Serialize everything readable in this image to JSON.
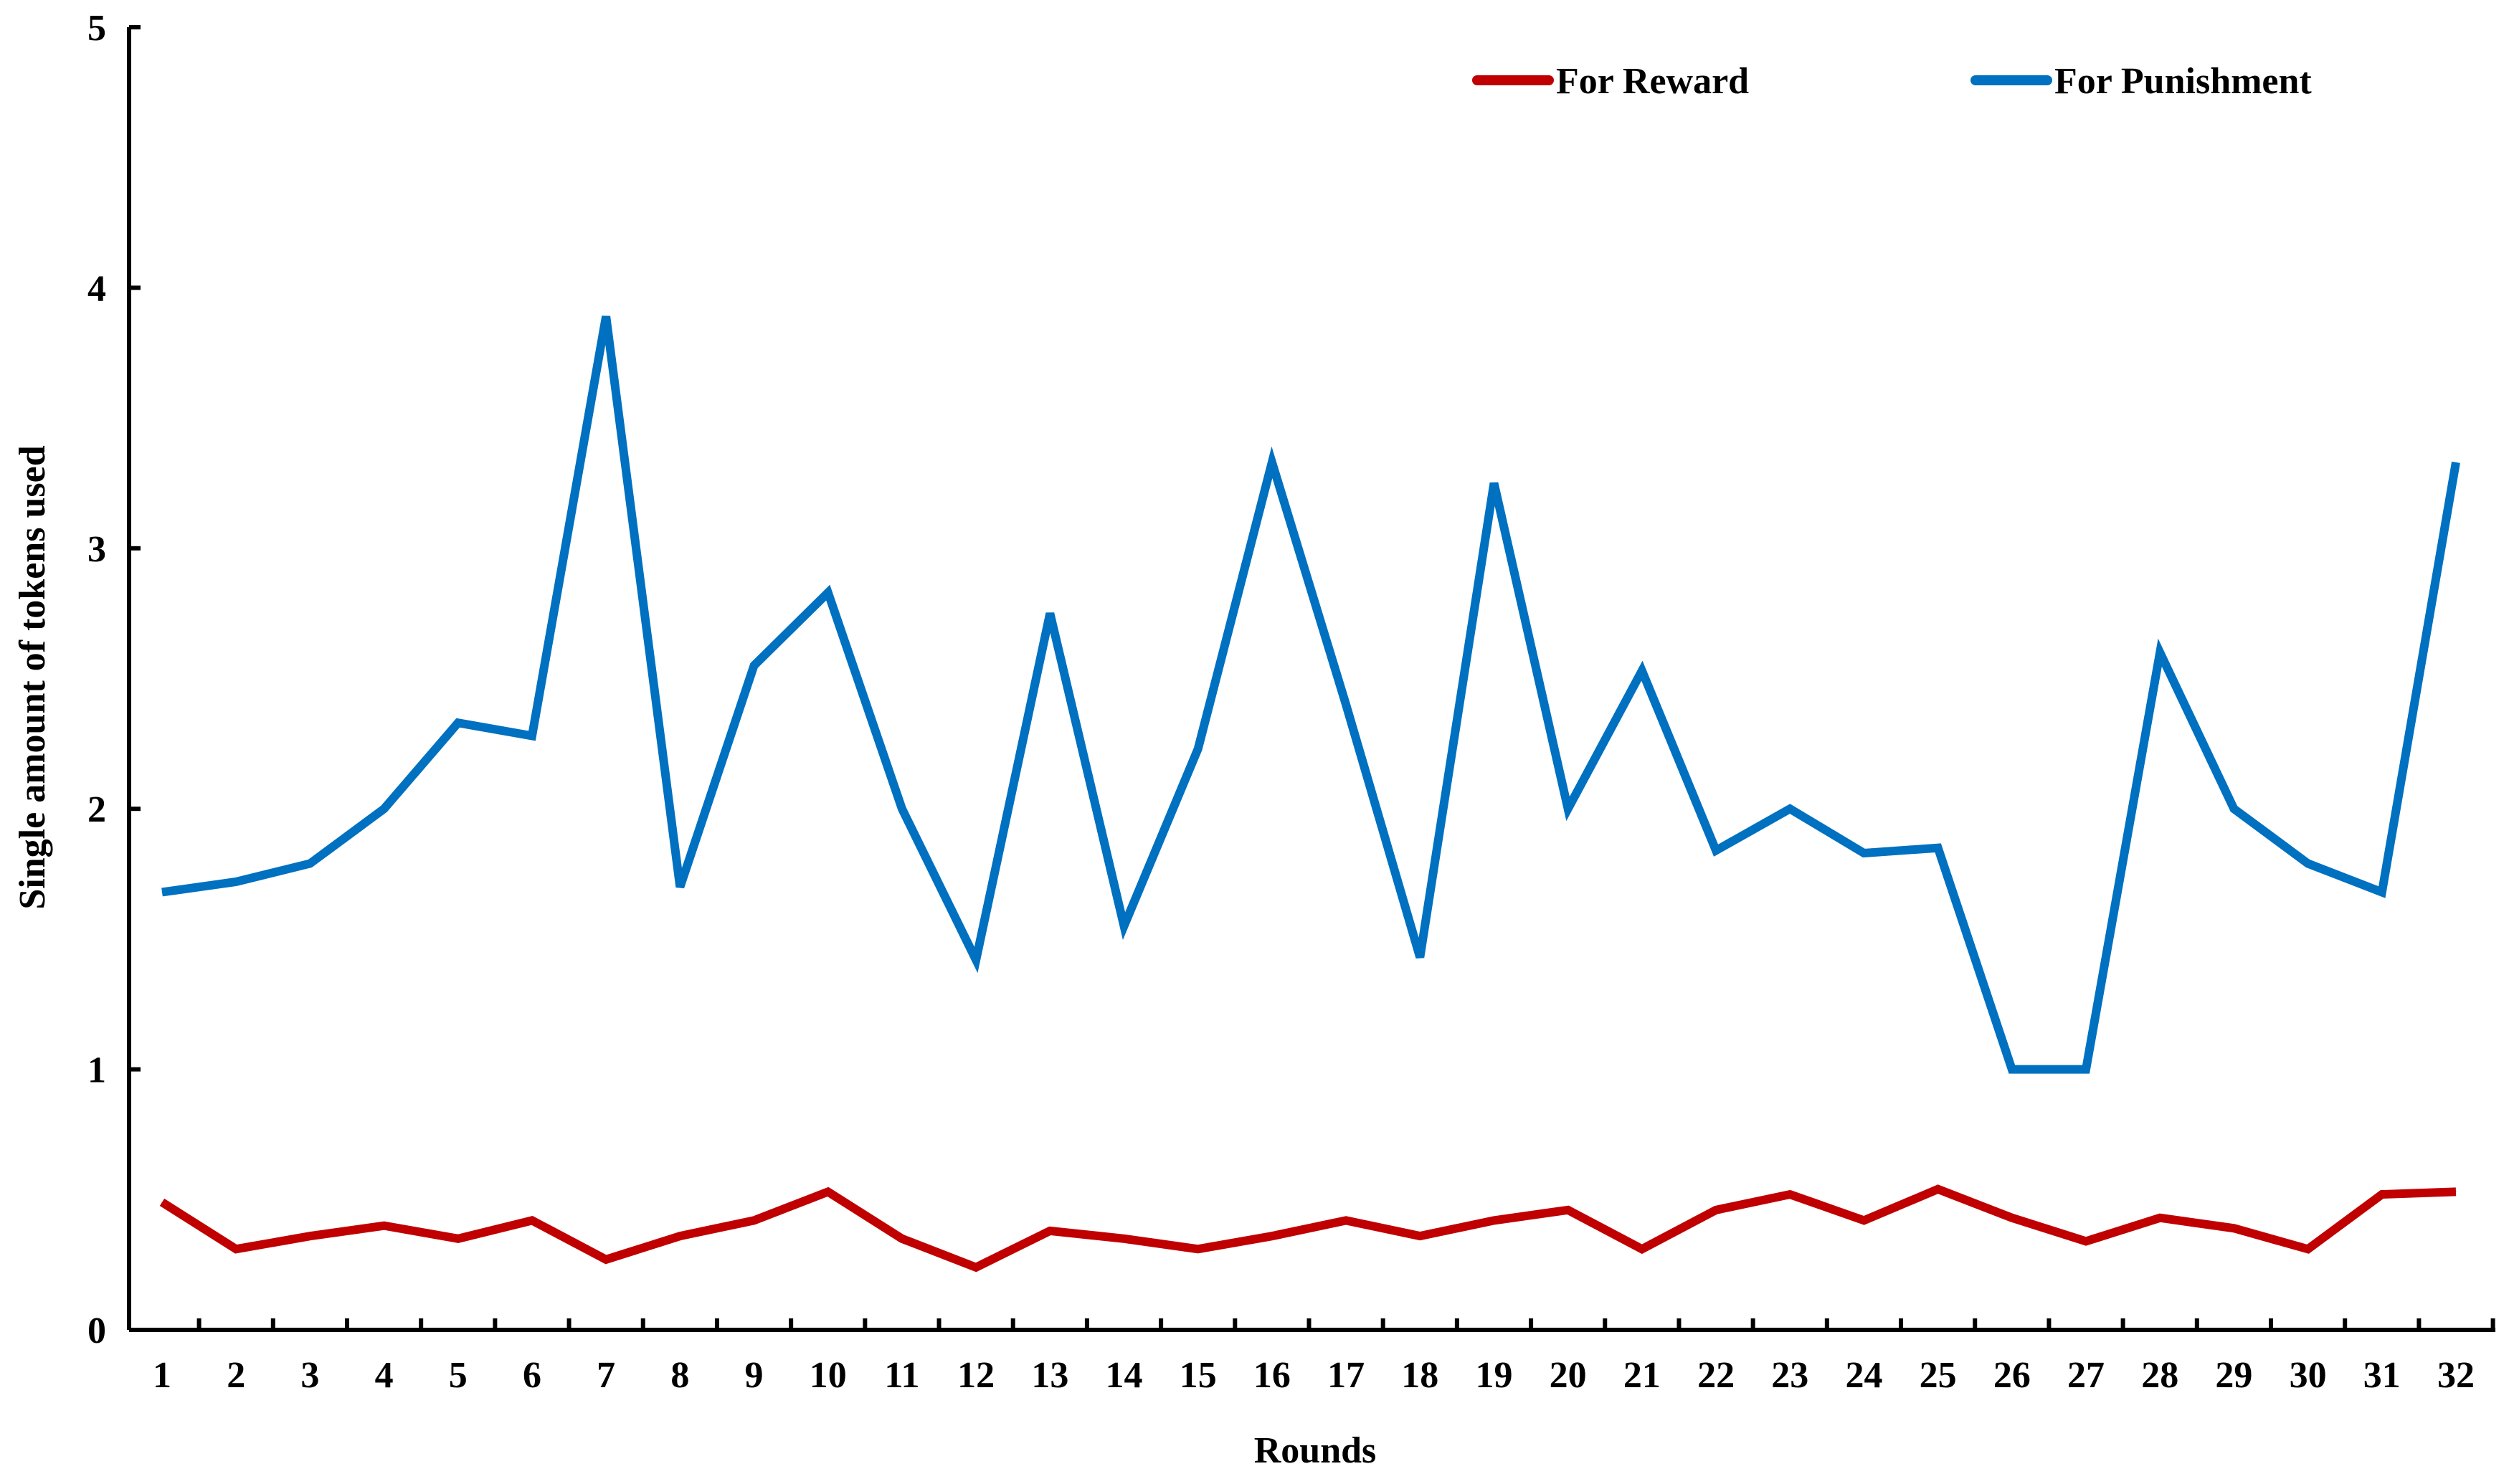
{
  "chart_data": {
    "type": "line",
    "title": "",
    "xlabel": "Rounds",
    "ylabel": "Single amount of tokens used",
    "categories": [
      "1",
      "2",
      "3",
      "4",
      "5",
      "6",
      "7",
      "8",
      "9",
      "10",
      "11",
      "12",
      "13",
      "14",
      "15",
      "16",
      "17",
      "18",
      "19",
      "20",
      "21",
      "22",
      "23",
      "24",
      "25",
      "26",
      "27",
      "28",
      "29",
      "30",
      "31",
      "32"
    ],
    "ylim": [
      0,
      5
    ],
    "yticks": [
      "0",
      "1",
      "2",
      "3",
      "4",
      "5"
    ],
    "grid": false,
    "legend_position": "top-right",
    "series": [
      {
        "name": "For Reward",
        "color": "#C00000",
        "values": [
          0.49,
          0.31,
          0.36,
          0.4,
          0.35,
          0.42,
          0.27,
          0.36,
          0.42,
          0.53,
          0.35,
          0.24,
          0.38,
          0.35,
          0.31,
          0.36,
          0.42,
          0.36,
          0.42,
          0.46,
          0.31,
          0.46,
          0.52,
          0.42,
          0.54,
          0.43,
          0.34,
          0.43,
          0.39,
          0.31,
          0.52,
          0.53
        ]
      },
      {
        "name": "For Punishment",
        "color": "#0070C0",
        "values": [
          1.68,
          1.72,
          1.79,
          2.0,
          2.33,
          2.28,
          3.89,
          1.7,
          2.55,
          2.83,
          2.0,
          1.42,
          2.75,
          1.55,
          2.23,
          3.33,
          2.4,
          1.43,
          3.25,
          2.0,
          2.53,
          1.84,
          2.0,
          1.83,
          1.85,
          1.0,
          1.0,
          2.6,
          2.0,
          1.79,
          1.68,
          3.33
        ]
      }
    ]
  }
}
